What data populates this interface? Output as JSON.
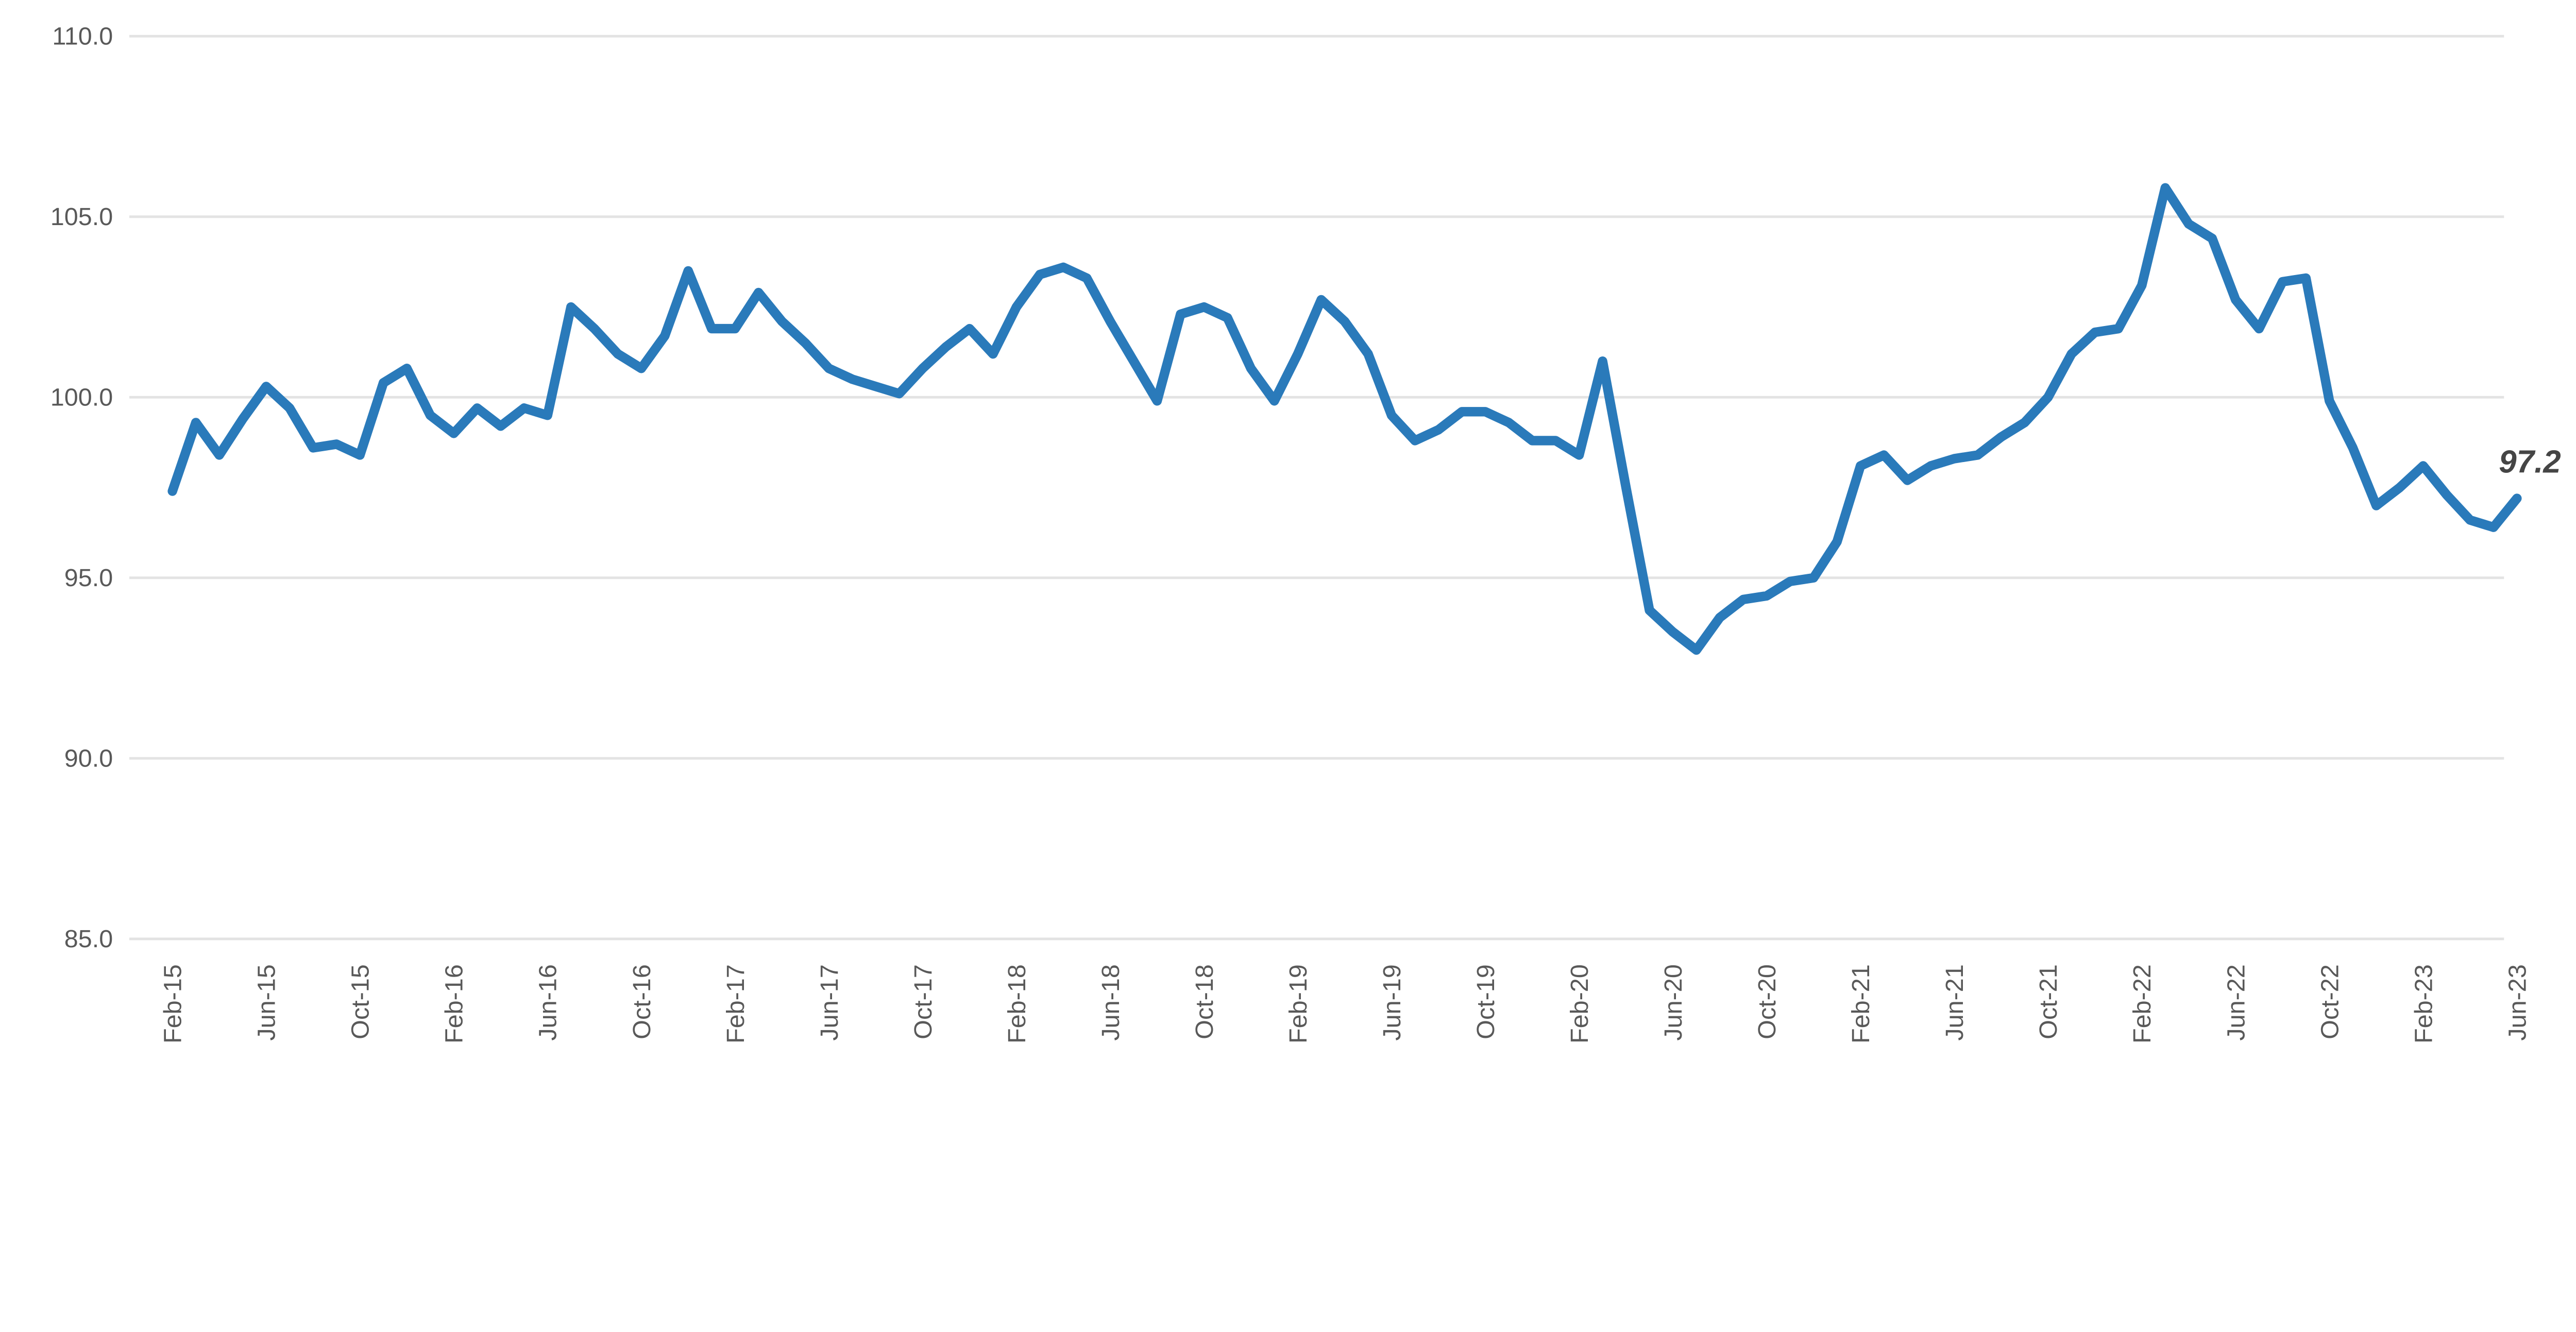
{
  "chart_data": {
    "type": "line",
    "title": "",
    "categories": [
      "Feb-15",
      "Mar-15",
      "Apr-15",
      "May-15",
      "Jun-15",
      "Jul-15",
      "Aug-15",
      "Sep-15",
      "Oct-15",
      "Nov-15",
      "Dec-15",
      "Jan-16",
      "Feb-16",
      "Mar-16",
      "Apr-16",
      "May-16",
      "Jun-16",
      "Jul-16",
      "Aug-16",
      "Sep-16",
      "Oct-16",
      "Nov-16",
      "Dec-16",
      "Jan-17",
      "Feb-17",
      "Mar-17",
      "Apr-17",
      "May-17",
      "Jun-17",
      "Jul-17",
      "Aug-17",
      "Sep-17",
      "Oct-17",
      "Nov-17",
      "Dec-17",
      "Jan-18",
      "Feb-18",
      "Mar-18",
      "Apr-18",
      "May-18",
      "Jun-18",
      "Jul-18",
      "Aug-18",
      "Sep-18",
      "Oct-18",
      "Nov-18",
      "Dec-18",
      "Jan-19",
      "Feb-19",
      "Mar-19",
      "Apr-19",
      "May-19",
      "Jun-19",
      "Jul-19",
      "Aug-19",
      "Sep-19",
      "Oct-19",
      "Nov-19",
      "Dec-19",
      "Jan-20",
      "Feb-20",
      "Mar-20",
      "Apr-20",
      "May-20",
      "Jun-20",
      "Jul-20",
      "Aug-20",
      "Sep-20",
      "Oct-20",
      "Nov-20",
      "Dec-20",
      "Jan-21",
      "Feb-21",
      "Mar-21",
      "Apr-21",
      "May-21",
      "Jun-21",
      "Jul-21",
      "Aug-21",
      "Sep-21",
      "Oct-21",
      "Nov-21",
      "Dec-21",
      "Jan-22",
      "Feb-22",
      "Mar-22",
      "Apr-22",
      "May-22",
      "Jun-22",
      "Jul-22",
      "Aug-22",
      "Sep-22",
      "Oct-22",
      "Nov-22",
      "Dec-22",
      "Jan-23",
      "Feb-23",
      "Mar-23",
      "Apr-23",
      "May-23",
      "Jun-23"
    ],
    "values": [
      97.4,
      99.3,
      98.4,
      99.4,
      100.3,
      99.7,
      98.6,
      98.7,
      98.4,
      100.4,
      100.8,
      99.5,
      99.0,
      99.7,
      99.2,
      99.7,
      99.5,
      102.5,
      101.9,
      101.2,
      100.8,
      101.7,
      103.5,
      101.9,
      101.9,
      102.9,
      102.1,
      101.5,
      100.8,
      100.5,
      100.3,
      100.1,
      100.8,
      101.4,
      101.9,
      101.2,
      102.5,
      103.4,
      103.6,
      103.3,
      102.1,
      101.0,
      99.9,
      102.3,
      102.5,
      102.2,
      100.8,
      99.9,
      101.2,
      102.7,
      102.1,
      101.2,
      99.5,
      98.8,
      99.1,
      99.6,
      99.6,
      99.3,
      98.8,
      98.8,
      98.4,
      101.0,
      97.5,
      94.1,
      93.5,
      93.0,
      93.9,
      94.4,
      94.5,
      94.9,
      95.0,
      96.0,
      98.1,
      98.4,
      97.7,
      98.1,
      98.3,
      98.4,
      98.9,
      99.3,
      100.0,
      101.2,
      101.8,
      101.9,
      103.1,
      105.8,
      104.8,
      104.4,
      102.7,
      101.9,
      103.2,
      103.3,
      99.9,
      98.6,
      97.0,
      97.5,
      98.1,
      97.3,
      96.6,
      96.4,
      97.2
    ],
    "xlabel": "",
    "ylabel": "",
    "ylim": [
      85,
      110
    ],
    "y_tick_step": 5,
    "y_tick_labels": [
      "110.0",
      "105.0",
      "100.0",
      "95.0",
      "90.0",
      "85.0"
    ],
    "x_tick_every": 4,
    "x_tick_labels": [
      "Feb-15",
      "Jun-15",
      "Oct-15",
      "Feb-16",
      "Jun-16",
      "Oct-16",
      "Feb-17",
      "Jun-17",
      "Oct-17",
      "Feb-18",
      "Jun-18",
      "Oct-18",
      "Feb-19",
      "Jun-19",
      "Oct-19",
      "Feb-20",
      "Jun-20",
      "Oct-20",
      "Feb-21",
      "Jun-21",
      "Oct-21",
      "Feb-22",
      "Jun-22",
      "Oct-22",
      "Feb-23",
      "Jun-23"
    ],
    "grid": "horizontal",
    "legend_position": "none",
    "end_label": "97.2"
  },
  "style": {
    "line_color": "#2A7ABA",
    "grid_color": "#E3E3E3",
    "axis_text_color": "#595959",
    "end_label_color": "#454545",
    "background_color": "#FFFFFF"
  }
}
